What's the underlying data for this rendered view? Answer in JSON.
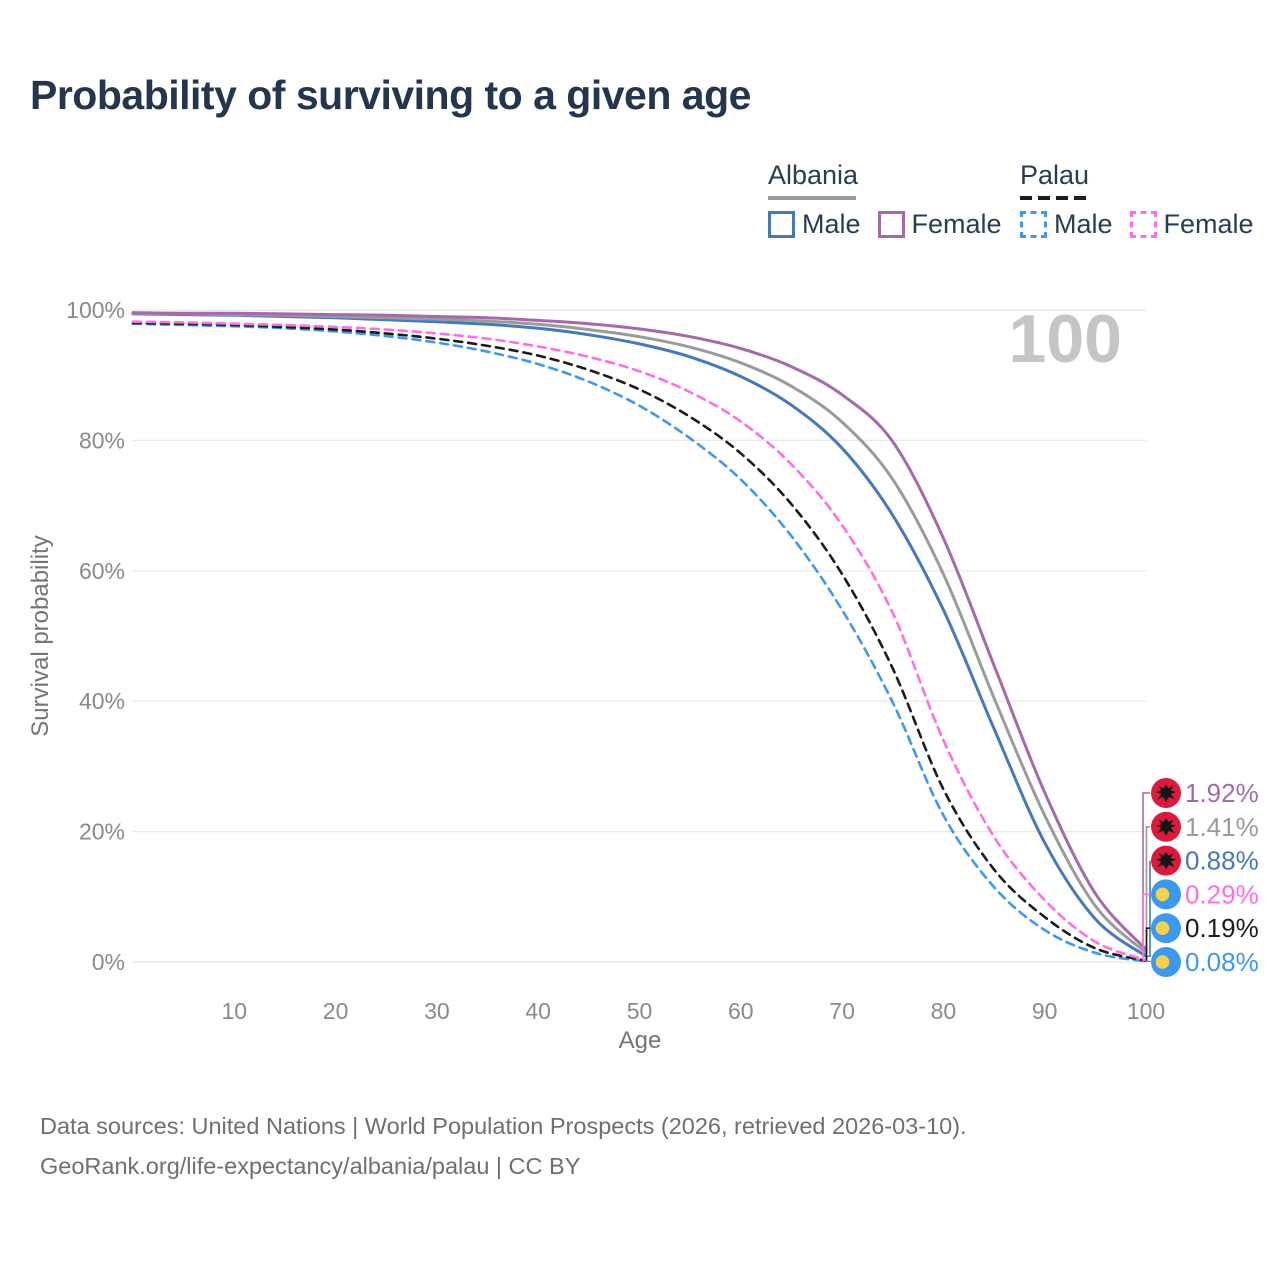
{
  "title": "Probability of surviving to a given age",
  "legend": {
    "groups": [
      {
        "label": "Albania",
        "style": "solid",
        "items": [
          {
            "label": "Male",
            "series_index": 2
          },
          {
            "label": "Female",
            "series_index": 0
          }
        ]
      },
      {
        "label": "Palau",
        "style": "dashed",
        "items": [
          {
            "label": "Male",
            "series_index": 5
          },
          {
            "label": "Female",
            "series_index": 3
          }
        ]
      }
    ]
  },
  "chart_data": {
    "type": "line",
    "title": "Probability of surviving to a given age",
    "xlabel": "Age",
    "ylabel": "Survival probability",
    "watermark": "100",
    "xlim": [
      0,
      100
    ],
    "ylim": [
      0,
      100
    ],
    "grid": "horizontal",
    "x_ticks": [
      10,
      20,
      30,
      40,
      50,
      60,
      70,
      80,
      90,
      100
    ],
    "y_ticks": [
      0,
      20,
      40,
      60,
      80,
      100
    ],
    "y_tick_labels": [
      "0%",
      "20%",
      "40%",
      "60%",
      "80%",
      "100%"
    ],
    "ages": [
      0,
      5,
      10,
      15,
      20,
      25,
      30,
      35,
      40,
      45,
      50,
      55,
      60,
      65,
      70,
      75,
      80,
      85,
      90,
      95,
      100
    ],
    "series": [
      {
        "name": "Albania Female",
        "country": "Albania",
        "sex": "Female",
        "flag": "albania",
        "color": "#A669AC",
        "dash": false,
        "end_label": "1.92%",
        "values": [
          99.6,
          99.5,
          99.5,
          99.4,
          99.3,
          99.2,
          99.0,
          98.8,
          98.4,
          97.9,
          97.1,
          95.9,
          94.1,
          91.3,
          87.0,
          79.8,
          65.0,
          45.5,
          26.0,
          10.5,
          1.92
        ]
      },
      {
        "name": "Albania Both sexes",
        "country": "Albania",
        "sex": "Both",
        "flag": "albania",
        "color": "#9B9B9B",
        "dash": false,
        "end_label": "1.41%",
        "values": [
          99.5,
          99.4,
          99.3,
          99.2,
          99.0,
          98.8,
          98.6,
          98.3,
          97.8,
          97.0,
          95.9,
          94.3,
          91.9,
          88.3,
          82.8,
          74.0,
          59.5,
          40.5,
          22.5,
          8.6,
          1.41
        ]
      },
      {
        "name": "Albania Male",
        "country": "Albania",
        "sex": "Male",
        "flag": "albania",
        "color": "#4678BE",
        "dash": false,
        "end_label": "0.88%",
        "values": [
          99.4,
          99.3,
          99.2,
          99.0,
          98.8,
          98.5,
          98.2,
          97.8,
          97.2,
          96.2,
          94.8,
          92.8,
          89.8,
          85.4,
          78.8,
          68.5,
          54.0,
          35.8,
          18.3,
          6.6,
          0.88
        ]
      },
      {
        "name": "Palau Female",
        "country": "Palau",
        "sex": "Female",
        "flag": "palau",
        "color": "#FF6FDF",
        "dash": true,
        "end_label": "0.29%",
        "values": [
          98.2,
          98.1,
          97.9,
          97.7,
          97.4,
          97.0,
          96.4,
          95.6,
          94.4,
          92.8,
          90.6,
          87.4,
          82.9,
          76.3,
          67.0,
          53.5,
          34.0,
          19.2,
          9.5,
          3.1,
          0.29
        ]
      },
      {
        "name": "Palau Both sexes",
        "country": "Palau",
        "sex": "Both",
        "flag": "palau",
        "color": "#1C1C1C",
        "dash": true,
        "end_label": "0.19%",
        "values": [
          98.0,
          97.9,
          97.7,
          97.4,
          97.0,
          96.4,
          95.6,
          94.5,
          93.0,
          90.8,
          87.8,
          83.6,
          78.0,
          70.2,
          59.5,
          45.0,
          26.5,
          14.2,
          6.9,
          2.1,
          0.19
        ]
      },
      {
        "name": "Palau Male",
        "country": "Palau",
        "sex": "Male",
        "flag": "palau",
        "color": "#3E97F3",
        "dash": true,
        "end_label": "0.08%",
        "values": [
          97.9,
          97.7,
          97.5,
          97.2,
          96.7,
          96.0,
          95.0,
          93.6,
          91.7,
          89.0,
          85.3,
          80.3,
          74.0,
          65.3,
          54.0,
          39.8,
          22.5,
          11.5,
          4.9,
          1.4,
          0.08
        ]
      }
    ],
    "flag_colors": {
      "albania_red": "#DC1A3B",
      "albania_eagle": "#151515",
      "palau_blue": "#3C99EE",
      "palau_moon": "#F5D24B"
    },
    "style_colors": {
      "grid": "#E8E8E8",
      "tick_text": "#8A8A8A",
      "axis_title": "#757575",
      "watermark": "#C5C5C5"
    }
  },
  "footer": {
    "line1": "Data sources: United Nations | World Population Prospects (2026, retrieved 2026-03-10).",
    "line2": "GeoRank.org/life-expectancy/albania/palau | CC BY"
  }
}
